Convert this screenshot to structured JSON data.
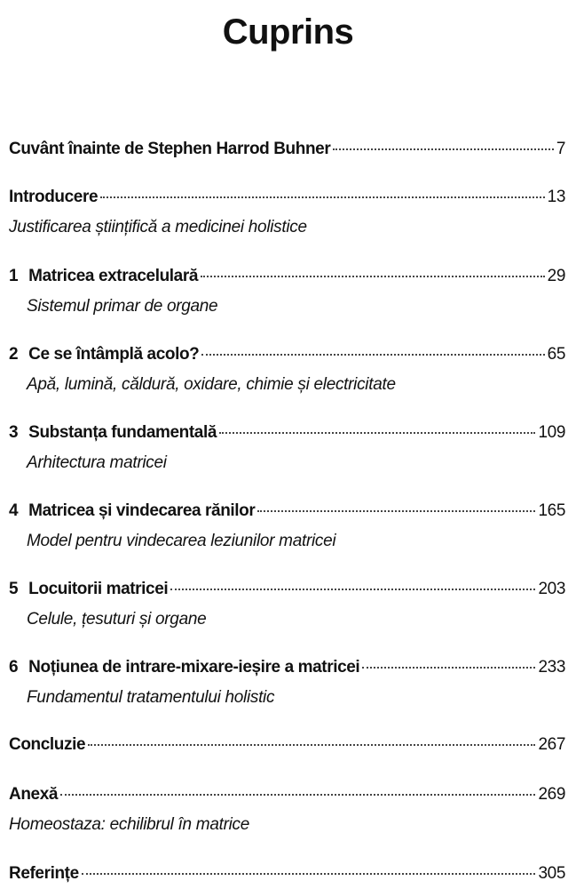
{
  "title": "Cuprins",
  "entries": [
    {
      "num": "",
      "title": "Cuvânt înainte de Stephen Harrod Buhner",
      "page": "7",
      "subtitle": ""
    },
    {
      "num": "",
      "title": "Introducere",
      "page": "13",
      "subtitle": "Justificarea științifică a medicinei holistice"
    },
    {
      "num": "1",
      "title": "Matricea extracelulară",
      "page": "29",
      "subtitle": "Sistemul primar de organe"
    },
    {
      "num": "2",
      "title": "Ce se întâmplă acolo?",
      "page": "65",
      "subtitle": "Apă, lumină, căldură, oxidare, chimie și electricitate"
    },
    {
      "num": "3",
      "title": "Substanța fundamentală",
      "page": "109",
      "subtitle": "Arhitectura matricei"
    },
    {
      "num": "4",
      "title": "Matricea și vindecarea rănilor",
      "page": "165",
      "subtitle": "Model pentru vindecarea leziunilor matricei"
    },
    {
      "num": "5",
      "title": "Locuitorii matricei",
      "page": "203",
      "subtitle": "Celule, țesuturi și organe"
    },
    {
      "num": "6",
      "title": "Noțiunea de intrare-mixare-ieșire a matricei",
      "page": "233",
      "subtitle": "Fundamentul tratamentului holistic"
    },
    {
      "num": "",
      "title": "Concluzie",
      "page": "267",
      "subtitle": ""
    },
    {
      "num": "",
      "title": "Anexă",
      "page": "269",
      "subtitle": "Homeostaza: echilibrul în matrice"
    },
    {
      "num": "",
      "title": "Referințe",
      "page": "305",
      "subtitle": ""
    }
  ]
}
